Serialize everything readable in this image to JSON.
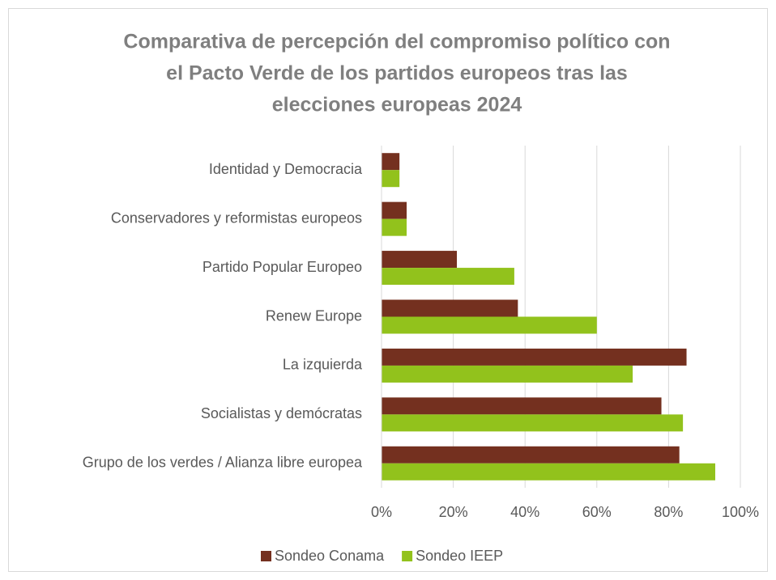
{
  "chart_data": {
    "type": "bar",
    "orientation": "horizontal",
    "title": [
      "Comparativa de percepción del compromiso político con",
      "el Pacto Verde de los partidos europeos tras las",
      "elecciones europeas 2024"
    ],
    "categories": [
      "Identidad y Democracia",
      "Conservadores y reformistas europeos",
      "Partido Popular Europeo",
      "Renew Europe",
      "La izquierda",
      "Socialistas y demócratas",
      "Grupo de los verdes / Alianza libre europea"
    ],
    "series": [
      {
        "name": "Sondeo Conama",
        "color": "#74301f",
        "values": [
          5,
          7,
          21,
          38,
          85,
          78,
          83
        ]
      },
      {
        "name": "Sondeo IEEP",
        "color": "#92c21c",
        "values": [
          5,
          7,
          37,
          60,
          70,
          84,
          93
        ]
      }
    ],
    "xlim": [
      0,
      100
    ],
    "xticks": [
      {
        "value": 0,
        "label": "0%"
      },
      {
        "value": 20,
        "label": "20%"
      },
      {
        "value": 40,
        "label": "40%"
      },
      {
        "value": 60,
        "label": "60%"
      },
      {
        "value": 80,
        "label": "80%"
      },
      {
        "value": 100,
        "label": "100%"
      }
    ],
    "grid": true,
    "legend": "bottom"
  }
}
